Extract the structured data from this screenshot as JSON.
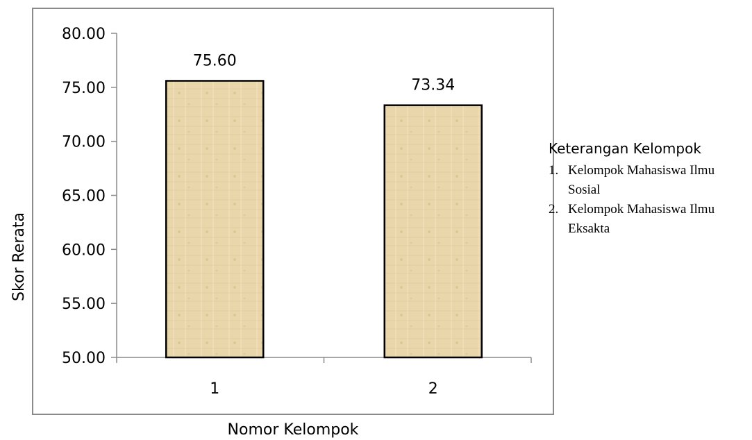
{
  "chart_data": {
    "type": "bar",
    "categories": [
      "1",
      "2"
    ],
    "values": [
      75.6,
      73.34
    ],
    "value_labels": [
      "75.60",
      "73.34"
    ],
    "ylim": [
      50,
      80
    ],
    "yticks": [
      "50.00",
      "55.00",
      "60.00",
      "65.00",
      "70.00",
      "75.00",
      "80.00"
    ],
    "xlabel": "Nomor  Kelompok",
    "ylabel": "Skor  Rerata",
    "title": "",
    "grid": false,
    "legend_placement": "right",
    "bar_color": "#e9d6ab",
    "bar_edge_color": "#000000"
  },
  "legend": {
    "title": "Keterangan Kelompok",
    "items": [
      {
        "number": "1.",
        "text": "Kelompok Mahasiswa Ilmu Sosial"
      },
      {
        "number": "2.",
        "text": "Kelompok Mahasiswa Ilmu Eksakta"
      }
    ]
  }
}
